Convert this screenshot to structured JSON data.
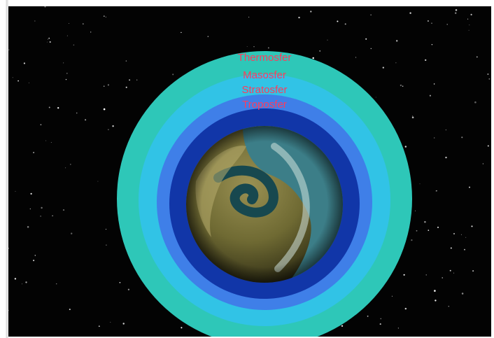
{
  "diagram": {
    "layers": [
      {
        "key": "thermosphere",
        "label": "Thermosfer",
        "color": "#2ec7b8"
      },
      {
        "key": "mesosphere",
        "label": "Masosfer",
        "color": "#31c3e6"
      },
      {
        "key": "stratosphere",
        "label": "Stratosfer",
        "color": "#3f7fe8"
      },
      {
        "key": "troposphere",
        "label": "Troposfer",
        "color": "#1136a8"
      }
    ],
    "label_color": "#ff3b5c",
    "space_color": "#030303",
    "earth_colors": {
      "land": "#7f7a3c",
      "land_light": "#b8ad6e",
      "ocean": "#3c7e88",
      "ocean_dark": "#17484f",
      "cloud": "#cfe1dc"
    }
  }
}
